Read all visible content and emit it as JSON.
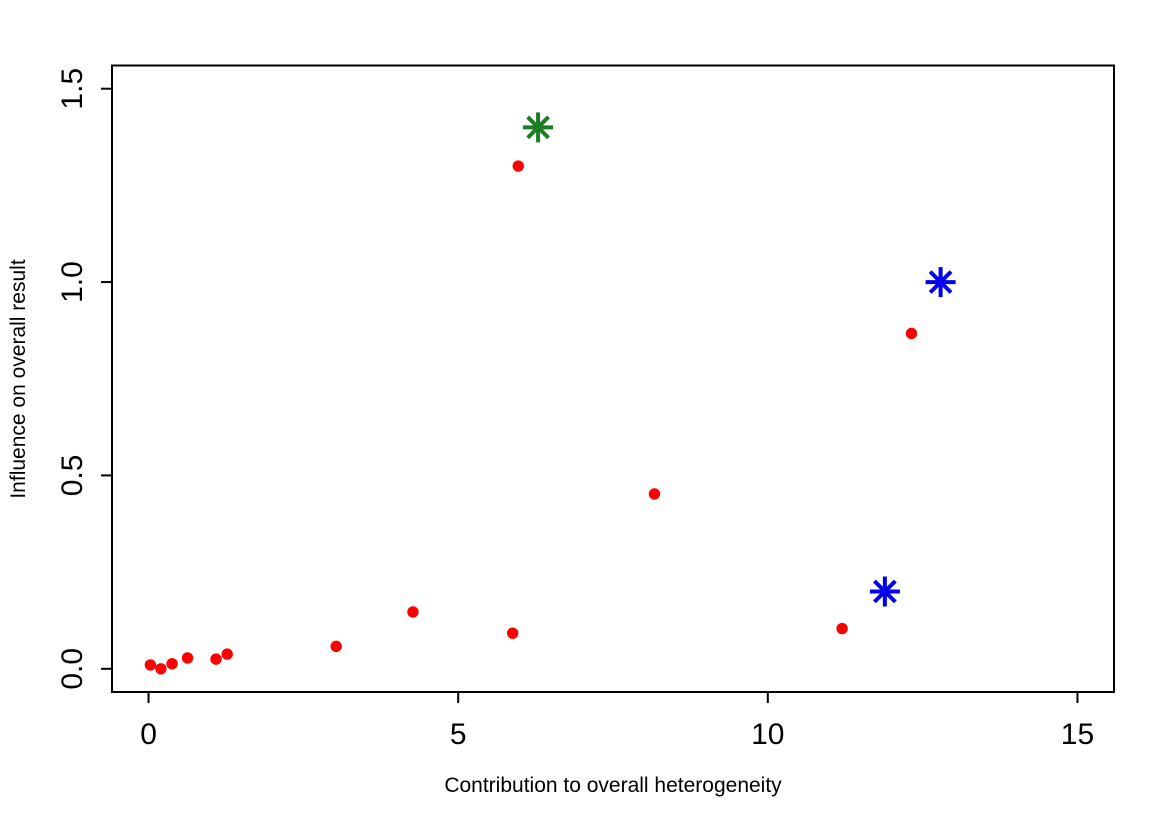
{
  "chart_data": {
    "type": "scatter",
    "title": "",
    "xlabel": "Contribution to overall heterogeneity",
    "ylabel": "Influence on overall result",
    "xlim": [
      -0.59,
      15.59
    ],
    "ylim": [
      -0.06,
      1.56
    ],
    "x_ticks": [
      0,
      5,
      10,
      15
    ],
    "x_tick_labels": [
      "0",
      "5",
      "10",
      "15"
    ],
    "y_ticks": [
      0,
      0.5,
      1.0,
      1.5
    ],
    "y_tick_labels": [
      "0.0",
      "0.5",
      "1.0",
      "1.5"
    ],
    "grid": false,
    "legend": false,
    "background_color": "#ffffff",
    "axis_color": "#000000",
    "series": [
      {
        "name": "red-study-points",
        "marker": "circle",
        "color": "#ff0000",
        "marker_radius_px": 5.7,
        "points": [
          [
            0.03,
            0.01
          ],
          [
            0.2,
            0.0
          ],
          [
            0.38,
            0.013
          ],
          [
            0.63,
            0.028
          ],
          [
            1.09,
            0.025
          ],
          [
            1.27,
            0.038
          ],
          [
            3.03,
            0.058
          ],
          [
            4.27,
            0.147
          ],
          [
            5.88,
            0.092
          ],
          [
            5.97,
            1.3
          ],
          [
            8.17,
            0.452
          ],
          [
            11.2,
            0.104
          ],
          [
            12.32,
            0.867
          ]
        ]
      },
      {
        "name": "green-asterisk-marker",
        "marker": "asterisk",
        "color": "#1b7e24",
        "marker_radius_px": 15,
        "points": [
          [
            6.29,
            1.4
          ]
        ]
      },
      {
        "name": "blue-asterisk-markers",
        "marker": "asterisk",
        "color": "#0000ee",
        "marker_radius_px": 15,
        "points": [
          [
            12.79,
            1.0
          ],
          [
            11.89,
            0.2
          ]
        ]
      }
    ]
  }
}
